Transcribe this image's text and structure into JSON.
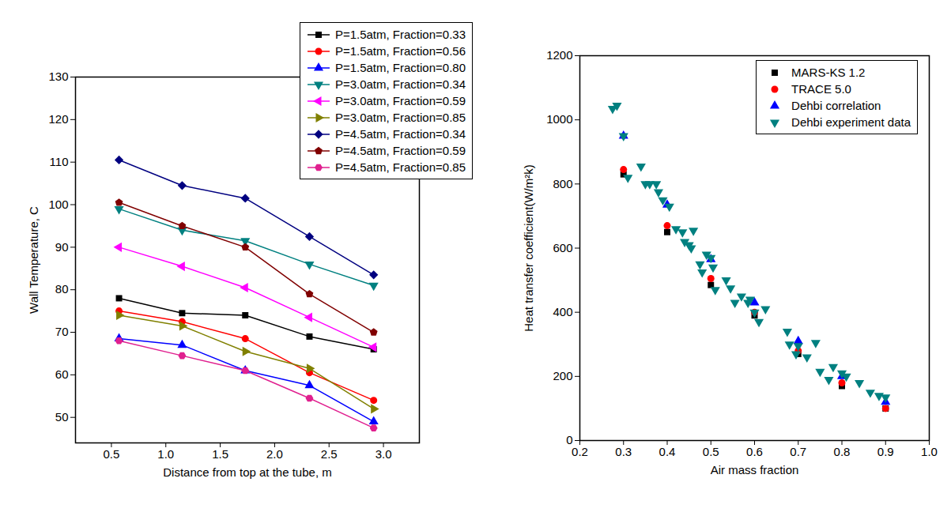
{
  "chart_data": [
    {
      "type": "line",
      "x_label": "Distance from top at the tube, m",
      "y_label": "Wall Temperature, C",
      "xlim": [
        0.17,
        3.33
      ],
      "xticks": [
        0.5,
        {
          "value": 1,
          "label": "1.0"
        },
        1.5,
        {
          "value": 2,
          "label": "2.0"
        },
        2.5,
        {
          "value": 3,
          "label": "3.0"
        }
      ],
      "ylim": [
        44,
        130
      ],
      "yticks": [
        50,
        60,
        70,
        80,
        90,
        100,
        110,
        120,
        130
      ],
      "grid": false,
      "legend": "top-right",
      "x": [
        0.57,
        1.15,
        1.73,
        2.32,
        2.91
      ],
      "series": [
        {
          "name": "P=1.5atm, Fraction=0.33",
          "color": "#000000",
          "marker": "square",
          "line_style": "solid",
          "values": [
            78,
            74.5,
            74,
            69,
            66
          ]
        },
        {
          "name": "P=1.5atm, Fraction=0.56",
          "color": "#ff0000",
          "marker": "circle",
          "line_style": "solid",
          "values": [
            75,
            72.5,
            68.5,
            60.5,
            54
          ]
        },
        {
          "name": "P=1.5atm, Fraction=0.80",
          "color": "#0000ff",
          "marker": "triangle",
          "line_style": "solid",
          "values": [
            68.5,
            67,
            61,
            57.5,
            49
          ]
        },
        {
          "name": "P=3.0atm, Fraction=0.34",
          "color": "#008080",
          "marker": "triangle-down",
          "line_style": "solid",
          "values": [
            99,
            94,
            91.5,
            86,
            81
          ]
        },
        {
          "name": "P=3.0atm, Fraction=0.59",
          "color": "#ff00ff",
          "marker": "triangle-left",
          "line_style": "solid",
          "values": [
            90,
            85.5,
            80.5,
            73.5,
            66.5
          ]
        },
        {
          "name": "P=3.0atm, Fraction=0.85",
          "color": "#808000",
          "marker": "triangle-right",
          "line_style": "solid",
          "values": [
            74,
            71.5,
            65.5,
            61.5,
            52
          ]
        },
        {
          "name": "P=4.5atm, Fraction=0.34",
          "color": "#000080",
          "marker": "diamond",
          "line_style": "solid",
          "values": [
            110.5,
            104.5,
            101.5,
            92.5,
            83.5
          ]
        },
        {
          "name": "P=4.5atm, Fraction=0.59",
          "color": "#800000",
          "marker": "pentagon",
          "line_style": "solid",
          "values": [
            100.5,
            95,
            90,
            79,
            70
          ]
        },
        {
          "name": "P=4.5atm, Fraction=0.85",
          "color": "#e0208f",
          "marker": "hexagon",
          "line_style": "solid",
          "values": [
            68,
            64.5,
            61,
            54.5,
            47.5
          ]
        }
      ]
    },
    {
      "type": "scatter",
      "x_label": "Air mass fraction",
      "y_label": "Heat transfer coefficient(W/m²k)",
      "xlim": [
        0.2,
        1.0
      ],
      "xticks": [
        0.2,
        0.3,
        0.4,
        0.5,
        0.6,
        0.7,
        0.8,
        0.9,
        {
          "value": 1,
          "label": "1.0"
        }
      ],
      "ylim": [
        0,
        1200
      ],
      "yticks": [
        0,
        200,
        400,
        600,
        800,
        1000,
        1200
      ],
      "grid": false,
      "legend": "top-right",
      "series": [
        {
          "name": "MARS-KS 1.2",
          "color": "#000000",
          "marker": "square",
          "x": [
            0.3,
            0.4,
            0.5,
            0.6,
            0.7,
            0.8,
            0.9
          ],
          "values": [
            830,
            650,
            485,
            390,
            270,
            170,
            100
          ]
        },
        {
          "name": "TRACE 5.0",
          "color": "#ff0000",
          "marker": "circle",
          "x": [
            0.3,
            0.4,
            0.5,
            0.6,
            0.7,
            0.8,
            0.9
          ],
          "values": [
            845,
            670,
            505,
            400,
            280,
            180,
            100
          ]
        },
        {
          "name": "Dehbi correlation",
          "color": "#0000ff",
          "marker": "triangle",
          "x": [
            0.3,
            0.4,
            0.5,
            0.6,
            0.7,
            0.8,
            0.9
          ],
          "values": [
            950,
            735,
            565,
            430,
            310,
            200,
            120
          ]
        },
        {
          "name": "Dehbi experiment data",
          "color": "#008080",
          "marker": "triangle-down",
          "x": [
            0.275,
            0.285,
            0.3,
            0.31,
            0.34,
            0.35,
            0.36,
            0.375,
            0.38,
            0.39,
            0.405,
            0.42,
            0.435,
            0.44,
            0.45,
            0.455,
            0.46,
            0.475,
            0.48,
            0.49,
            0.5,
            0.505,
            0.51,
            0.535,
            0.545,
            0.555,
            0.57,
            0.585,
            0.59,
            0.6,
            0.61,
            0.625,
            0.675,
            0.68,
            0.695,
            0.7,
            0.72,
            0.74,
            0.75,
            0.77,
            0.78,
            0.8,
            0.81,
            0.84,
            0.865,
            0.885,
            0.9
          ],
          "values": [
            1035,
            1045,
            950,
            820,
            855,
            800,
            800,
            800,
            775,
            750,
            730,
            660,
            650,
            620,
            610,
            600,
            655,
            550,
            525,
            580,
            570,
            540,
            470,
            500,
            475,
            430,
            450,
            430,
            440,
            400,
            370,
            410,
            340,
            300,
            270,
            295,
            260,
            305,
            215,
            190,
            230,
            210,
            200,
            180,
            150,
            140,
            135
          ]
        }
      ]
    }
  ]
}
